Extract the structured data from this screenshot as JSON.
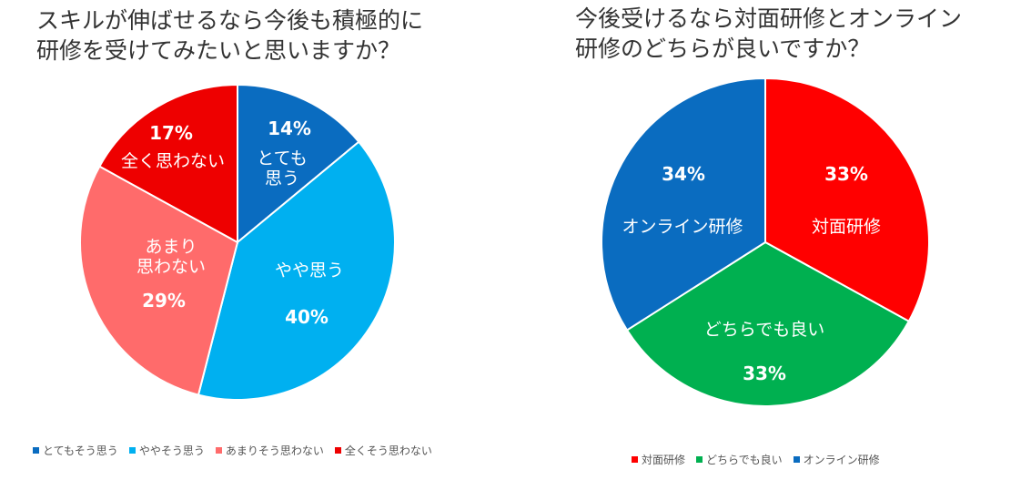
{
  "chart_data": [
    {
      "type": "pie",
      "title": "スキルが伸ばせるなら今後も積極的に\n研修を受けてみたいと思いますか？",
      "slices": [
        {
          "key": "totemo",
          "label": "とても\n思う",
          "legend": "とてもそう思う",
          "value": 14,
          "value_label": "14%",
          "color": "#0a6cc0"
        },
        {
          "key": "yaya",
          "label": "やや思う",
          "legend": "ややそう思う",
          "value": 40,
          "value_label": "40%",
          "color": "#00b0f0"
        },
        {
          "key": "amari",
          "label": "あまり\n思わない",
          "legend": "あまりそう思わない",
          "value": 29,
          "value_label": "29%",
          "color": "#ff6b6b"
        },
        {
          "key": "mattaku",
          "label": "全く思わない",
          "legend": "全くそう思わない",
          "value": 17,
          "value_label": "17%",
          "color": "#ee0000"
        }
      ],
      "legend_position": "bottom"
    },
    {
      "type": "pie",
      "title": "今後受けるなら対面研修とオンライン\n研修のどちらが良いですか？",
      "slices": [
        {
          "key": "taimen",
          "label": "対面研修",
          "legend": "対面研修",
          "value": 33,
          "value_label": "33%",
          "color": "#ff0000"
        },
        {
          "key": "dochira",
          "label": "どちらでも良い",
          "legend": "どちらでも良い",
          "value": 33,
          "value_label": "33%",
          "color": "#00b050"
        },
        {
          "key": "online",
          "label": "オンライン研修",
          "legend": "オンライン研修",
          "value": 34,
          "value_label": "34%",
          "color": "#0a6cc0"
        }
      ],
      "legend_position": "bottom"
    }
  ]
}
